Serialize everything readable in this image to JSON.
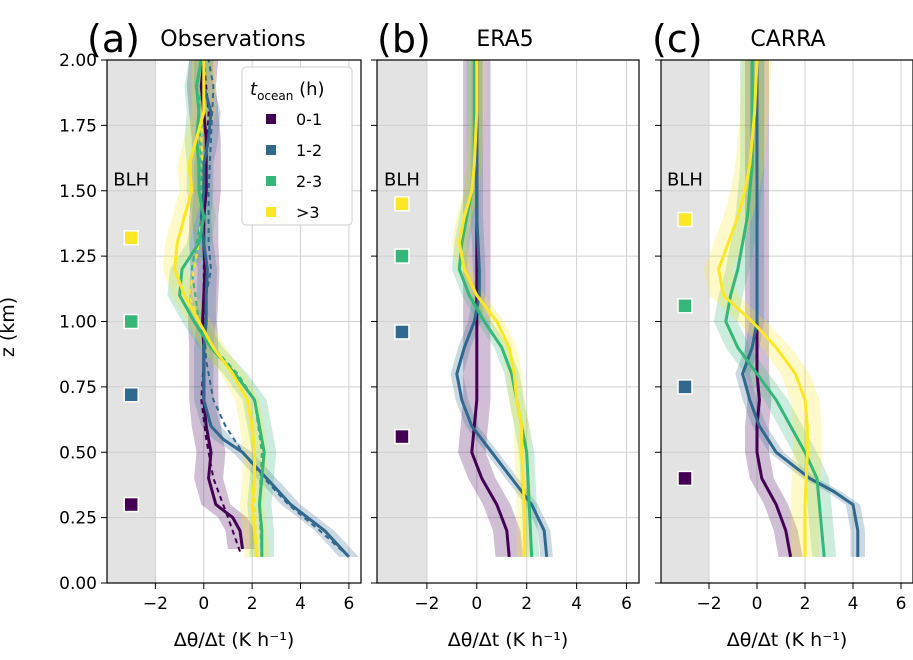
{
  "colors": {
    "0-1": "#440154",
    "1-2": "#31688e",
    "2-3": "#35b779",
    ">3": "#fde725",
    "blh_shade": "#e3e3e3",
    "grid": "#d0d0d0"
  },
  "legend": {
    "title_main": "t",
    "title_sub": "ocean",
    "title_unit": " (h)",
    "placement": "upper-right of panel (a)",
    "entries": [
      "0-1",
      "1-2",
      "2-3",
      ">3"
    ]
  },
  "chart_data": [
    {
      "type": "line",
      "panel_letter": "(a)",
      "title": "Observations",
      "xlabel": "Δθ/Δt (K h⁻¹)",
      "ylabel": "z (km)",
      "xlim": [
        -4.0,
        6.5
      ],
      "ylim": [
        0,
        2.0
      ],
      "xticks": [
        -2,
        0,
        2,
        4,
        6
      ],
      "xtick_labels": [
        "−2",
        "0",
        "2",
        "4",
        "6"
      ],
      "yticks": [
        0,
        0.25,
        0.5,
        0.75,
        1.0,
        1.25,
        1.5,
        1.75,
        2.0
      ],
      "ytick_labels": [
        "0.00",
        "0.25",
        "0.50",
        "0.75",
        "1.00",
        "1.25",
        "1.50",
        "1.75",
        "2.00"
      ],
      "grid": true,
      "blh_shade_xrange": [
        -4.0,
        -2.0
      ],
      "blh_label": "BLH",
      "blh_markers": [
        {
          "name": "0-1",
          "x": -3.0,
          "z": 0.3
        },
        {
          "name": "1-2",
          "x": -3.0,
          "z": 0.72
        },
        {
          "name": "2-3",
          "x": -3.0,
          "z": 1.0
        },
        {
          "name": ">3",
          "x": -3.0,
          "z": 1.32
        }
      ],
      "series": [
        {
          "name": "0-1",
          "z": [
            0.13,
            0.2,
            0.25,
            0.3,
            0.4,
            0.5,
            0.6,
            0.7,
            0.8,
            0.9,
            1.0,
            1.1,
            1.2,
            1.3,
            1.4,
            1.5,
            1.6,
            1.7,
            1.8,
            1.9,
            2.0
          ],
          "x": [
            1.6,
            1.5,
            1.2,
            0.5,
            0.2,
            0.3,
            0.1,
            0.0,
            0.0,
            0.0,
            -0.05,
            0.0,
            0.05,
            0.0,
            0.0,
            0.1,
            0.1,
            0.1,
            0.0,
            -0.1,
            0.0
          ],
          "spread": 0.6
        },
        {
          "name": "1-2",
          "z": [
            0.1,
            0.15,
            0.2,
            0.3,
            0.4,
            0.5,
            0.55,
            0.6,
            0.7,
            0.8,
            0.9,
            1.0,
            1.1,
            1.2,
            1.3,
            1.4,
            1.5,
            1.6,
            1.7,
            1.8,
            1.9,
            2.0
          ],
          "x": [
            6.0,
            5.5,
            5.0,
            3.6,
            2.6,
            1.6,
            0.8,
            0.3,
            0.0,
            0.0,
            0.0,
            0.1,
            0.1,
            0.15,
            0.0,
            -0.1,
            0.0,
            0.0,
            0.2,
            0.3,
            0.0,
            0.0
          ],
          "spread": 0.4
        },
        {
          "name": "2-3",
          "z": [
            0.1,
            0.2,
            0.3,
            0.4,
            0.5,
            0.6,
            0.7,
            0.8,
            0.9,
            1.0,
            1.1,
            1.2,
            1.3,
            1.4,
            1.5,
            1.6,
            1.7,
            1.8,
            1.9,
            2.0
          ],
          "x": [
            2.4,
            2.4,
            2.3,
            2.4,
            2.5,
            2.3,
            2.1,
            1.3,
            0.3,
            -0.4,
            -1.0,
            -0.9,
            -0.2,
            0.0,
            -0.2,
            -0.2,
            -0.3,
            -0.2,
            -0.3,
            -0.1
          ],
          "spread": 0.5
        },
        {
          "name": ">3",
          "z": [
            0.1,
            0.2,
            0.3,
            0.4,
            0.5,
            0.6,
            0.7,
            0.8,
            0.9,
            1.0,
            1.1,
            1.2,
            1.3,
            1.4,
            1.5,
            1.6,
            1.7,
            1.8,
            1.9,
            2.0
          ],
          "x": [
            2.2,
            2.1,
            2.0,
            2.1,
            2.1,
            2.0,
            1.8,
            1.2,
            0.4,
            -0.2,
            -0.8,
            -1.2,
            -1.1,
            -0.8,
            -0.5,
            -0.6,
            -0.3,
            0.0,
            0.0,
            0.0
          ],
          "spread": 0.5
        }
      ],
      "dashed_series": [
        {
          "name": "0-1",
          "z": [
            0.12,
            0.25,
            0.4,
            0.55,
            0.7,
            0.85,
            1.0,
            1.2,
            1.4,
            1.6,
            1.8,
            2.0
          ],
          "x": [
            1.5,
            1.0,
            0.4,
            0.1,
            -0.1,
            0.0,
            0.0,
            0.0,
            0.0,
            0.1,
            0.2,
            0.0
          ]
        },
        {
          "name": "1-2",
          "z": [
            0.1,
            0.2,
            0.3,
            0.4,
            0.5,
            0.6,
            0.7,
            0.85,
            1.0,
            1.1,
            1.2,
            1.3,
            1.5,
            1.7,
            1.9,
            2.0
          ],
          "x": [
            6.0,
            4.8,
            3.5,
            2.5,
            1.6,
            0.9,
            0.4,
            0.1,
            0.0,
            0.1,
            0.3,
            0.2,
            0.2,
            0.3,
            0.4,
            0.2
          ]
        },
        {
          "name": "2-3",
          "z": [
            0.1,
            0.3,
            0.5,
            0.7,
            0.8,
            0.9,
            1.0,
            1.2,
            1.4,
            1.6,
            1.8,
            2.0
          ],
          "x": [
            2.4,
            2.3,
            2.4,
            2.1,
            1.4,
            0.4,
            -0.2,
            -0.5,
            -0.1,
            -0.1,
            -0.2,
            0.0
          ]
        },
        {
          "name": ">3",
          "z": [
            0.1,
            0.3,
            0.5,
            0.7,
            0.8,
            0.9,
            1.0,
            1.1,
            1.3,
            1.5,
            1.7,
            1.9,
            2.0
          ],
          "x": [
            2.2,
            2.1,
            2.1,
            1.8,
            1.2,
            0.4,
            -0.2,
            -0.6,
            -0.2,
            0.0,
            -0.1,
            0.0,
            0.0
          ]
        }
      ]
    },
    {
      "type": "line",
      "panel_letter": "(b)",
      "title": "ERA5",
      "xlabel": "Δθ/Δt (K h⁻¹)",
      "xlim": [
        -4.0,
        6.5
      ],
      "ylim": [
        0,
        2.0
      ],
      "xticks": [
        -2,
        0,
        2,
        4,
        6
      ],
      "xtick_labels": [
        "−2",
        "0",
        "2",
        "4",
        "6"
      ],
      "yticks": [
        0,
        0.25,
        0.5,
        0.75,
        1.0,
        1.25,
        1.5,
        1.75,
        2.0
      ],
      "grid": true,
      "blh_shade_xrange": [
        -4.0,
        -2.0
      ],
      "blh_label": "BLH",
      "blh_markers": [
        {
          "name": "0-1",
          "x": -3.0,
          "z": 0.56
        },
        {
          "name": "1-2",
          "x": -3.0,
          "z": 0.96
        },
        {
          "name": "2-3",
          "x": -3.0,
          "z": 1.25
        },
        {
          "name": ">3",
          "x": -3.0,
          "z": 1.45
        }
      ],
      "series": [
        {
          "name": "0-1",
          "z": [
            0.1,
            0.2,
            0.3,
            0.4,
            0.5,
            0.6,
            0.7,
            0.8,
            0.9,
            1.0,
            1.1,
            1.2,
            1.3,
            1.5,
            1.7,
            2.0
          ],
          "x": [
            1.3,
            1.2,
            0.8,
            0.2,
            -0.2,
            -0.1,
            0.0,
            0.0,
            0.0,
            0.0,
            0.0,
            0.0,
            0.0,
            0.0,
            0.0,
            0.0
          ],
          "spread": 0.55
        },
        {
          "name": "1-2",
          "z": [
            0.1,
            0.2,
            0.3,
            0.4,
            0.5,
            0.6,
            0.7,
            0.8,
            0.9,
            1.0,
            1.1,
            1.2,
            1.4,
            1.6,
            1.8,
            2.0
          ],
          "x": [
            2.8,
            2.7,
            2.2,
            1.4,
            0.6,
            -0.2,
            -0.6,
            -0.8,
            -0.5,
            -0.1,
            0.1,
            0.1,
            0.0,
            0.0,
            0.0,
            0.0
          ],
          "spread": 0.25
        },
        {
          "name": "2-3",
          "z": [
            0.1,
            0.3,
            0.5,
            0.6,
            0.7,
            0.8,
            0.9,
            1.0,
            1.1,
            1.2,
            1.3,
            1.4,
            1.5,
            1.6,
            1.8,
            2.0
          ],
          "x": [
            2.2,
            2.1,
            2.0,
            1.8,
            1.6,
            1.4,
            1.0,
            0.3,
            -0.3,
            -0.7,
            -0.6,
            -0.4,
            -0.2,
            -0.1,
            -0.1,
            -0.1
          ],
          "spread": 0.3
        },
        {
          "name": ">3",
          "z": [
            0.1,
            0.3,
            0.5,
            0.6,
            0.7,
            0.8,
            0.9,
            1.0,
            1.1,
            1.2,
            1.3,
            1.4,
            1.5,
            1.6,
            1.8,
            2.0
          ],
          "x": [
            1.9,
            1.9,
            1.8,
            1.8,
            1.6,
            1.5,
            1.3,
            0.8,
            0.0,
            -0.5,
            -0.7,
            -0.5,
            -0.2,
            -0.1,
            0.0,
            0.0
          ],
          "spread": 0.3
        }
      ]
    },
    {
      "type": "line",
      "panel_letter": "(c)",
      "title": "CARRA",
      "xlabel": "Δθ/Δt (K h⁻¹)",
      "xlim": [
        -4.0,
        6.5
      ],
      "ylim": [
        0,
        2.0
      ],
      "xticks": [
        -2,
        0,
        2,
        4,
        6
      ],
      "xtick_labels": [
        "−2",
        "0",
        "2",
        "4",
        "6"
      ],
      "yticks": [
        0,
        0.25,
        0.5,
        0.75,
        1.0,
        1.25,
        1.5,
        1.75,
        2.0
      ],
      "grid": true,
      "blh_shade_xrange": [
        -4.0,
        -2.0
      ],
      "blh_label": "BLH",
      "blh_markers": [
        {
          "name": "0-1",
          "x": -3.0,
          "z": 0.4
        },
        {
          "name": "1-2",
          "x": -3.0,
          "z": 0.75
        },
        {
          "name": "2-3",
          "x": -3.0,
          "z": 1.06
        },
        {
          "name": ">3",
          "x": -3.0,
          "z": 1.39
        }
      ],
      "series": [
        {
          "name": "0-1",
          "z": [
            0.1,
            0.2,
            0.3,
            0.4,
            0.5,
            0.6,
            0.7,
            0.8,
            0.9,
            1.0,
            1.2,
            1.4,
            1.6,
            1.8,
            2.0
          ],
          "x": [
            1.4,
            1.2,
            0.8,
            0.2,
            0.0,
            0.0,
            0.1,
            0.0,
            0.0,
            0.0,
            0.0,
            0.0,
            0.0,
            0.0,
            0.0
          ],
          "spread": 0.5
        },
        {
          "name": "1-2",
          "z": [
            0.1,
            0.2,
            0.3,
            0.35,
            0.4,
            0.5,
            0.6,
            0.7,
            0.8,
            0.9,
            1.0,
            1.2,
            1.4,
            1.6,
            1.8,
            2.0
          ],
          "x": [
            4.2,
            4.2,
            4.0,
            3.2,
            2.2,
            0.8,
            0.1,
            -0.3,
            -0.6,
            -0.2,
            0.0,
            0.0,
            0.0,
            0.0,
            0.0,
            0.0
          ],
          "spread": 0.3
        },
        {
          "name": "2-3",
          "z": [
            0.1,
            0.2,
            0.3,
            0.4,
            0.5,
            0.6,
            0.7,
            0.8,
            0.9,
            1.0,
            1.1,
            1.2,
            1.3,
            1.4,
            1.6,
            1.8,
            2.0
          ],
          "x": [
            2.8,
            2.7,
            2.6,
            2.5,
            2.0,
            1.4,
            0.8,
            0.0,
            -0.8,
            -1.3,
            -1.1,
            -0.8,
            -0.6,
            -0.4,
            -0.2,
            -0.2,
            -0.2
          ],
          "spread": 0.5
        },
        {
          "name": ">3",
          "z": [
            0.1,
            0.3,
            0.5,
            0.6,
            0.7,
            0.8,
            0.9,
            1.0,
            1.1,
            1.2,
            1.3,
            1.4,
            1.5,
            1.6,
            1.8,
            2.0
          ],
          "x": [
            2.0,
            2.0,
            2.1,
            2.1,
            2.0,
            1.6,
            0.8,
            -0.2,
            -1.4,
            -1.6,
            -1.2,
            -0.8,
            -0.5,
            -0.3,
            -0.1,
            0.0
          ],
          "spread": 0.6
        }
      ]
    }
  ]
}
